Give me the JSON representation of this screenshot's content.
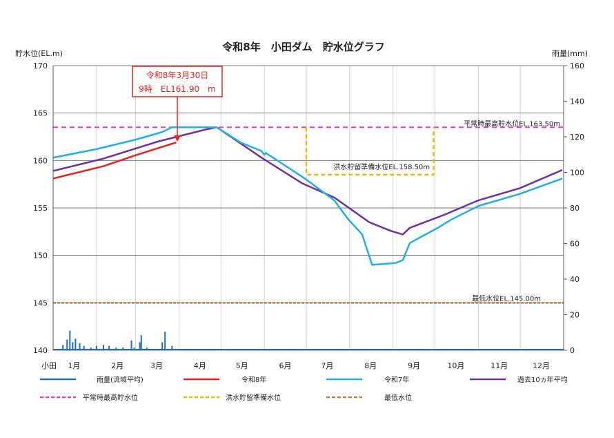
{
  "chart_data": {
    "type": "line",
    "title": "令和8年　小田ダム　貯水位グラフ",
    "ylabel_left": "貯水位(EL.m)",
    "ylabel_right": "雨量(mm)",
    "station_label": "小田",
    "ylim_left": [
      140,
      170
    ],
    "yticks_left": [
      "140",
      "145",
      "150",
      "155",
      "160",
      "165",
      "170"
    ],
    "ylim_right": [
      0,
      160
    ],
    "yticks_right": [
      "0",
      "20",
      "40",
      "60",
      "80",
      "100",
      "120",
      "140",
      "160"
    ],
    "x_categories": [
      "1月",
      "2月",
      "3月",
      "4月",
      "5月",
      "6月",
      "7月",
      "8月",
      "9月",
      "10月",
      "11月",
      "12月"
    ],
    "grid": true,
    "legend_position": "bottom",
    "annotation": {
      "line1": "令和8年3月30日",
      "line2": "9時　EL161.90　m",
      "date": "03-30",
      "value": 161.9
    },
    "reference_lines": [
      {
        "name": "平常時最高貯水位",
        "label": "平常時最高貯水位EL.163.50m",
        "value": 163.5,
        "color": "#e83fd0"
      },
      {
        "name": "洪水貯留準備水位",
        "label": "洪水貯留準備水位EL.158.50m",
        "value": 158.5,
        "upper": 163.5,
        "from": "07-01",
        "to": "09-30",
        "color": "#f5b800"
      },
      {
        "name": "最低水位",
        "label": "最低水位EL.145.00m",
        "value": 145.0,
        "color": "#c0804a"
      }
    ],
    "rainfall": {
      "name": "雨量(流域平均)",
      "color": "#1f6fb5",
      "points": [
        [
          "01-08",
          3
        ],
        [
          "01-11",
          6
        ],
        [
          "01-13",
          11
        ],
        [
          "01-15",
          4.5
        ],
        [
          "01-17",
          6.5
        ],
        [
          "01-20",
          4
        ],
        [
          "01-23",
          2.5
        ],
        [
          "01-28",
          1.5
        ],
        [
          "02-01",
          2.5
        ],
        [
          "02-06",
          3
        ],
        [
          "02-10",
          2.5
        ],
        [
          "02-15",
          1.5
        ],
        [
          "02-20",
          1.5
        ],
        [
          "02-26",
          5.5
        ],
        [
          "02-28",
          1.5
        ],
        [
          "03-04",
          4.5
        ],
        [
          "03-05",
          8.5
        ],
        [
          "03-09",
          1.5
        ],
        [
          "03-20",
          4.5
        ],
        [
          "03-22",
          10.5
        ],
        [
          "03-27",
          2.5
        ]
      ]
    },
    "series": [
      {
        "name": "令和8年",
        "color": "#e8231f",
        "points": [
          [
            "01-01",
            158.1
          ],
          [
            "02-06",
            159.4
          ],
          [
            "03-02",
            160.6
          ],
          [
            "03-30",
            161.9
          ]
        ]
      },
      {
        "name": "令和7年",
        "color": "#1fb0e6",
        "points": [
          [
            "01-01",
            160.3
          ],
          [
            "02-01",
            161.2
          ],
          [
            "03-01",
            162.2
          ],
          [
            "03-20",
            163.0
          ],
          [
            "03-27",
            163.5
          ],
          [
            "04-28",
            163.5
          ],
          [
            "05-15",
            161.9
          ],
          [
            "05-30",
            161.0
          ],
          [
            "06-01",
            160.6
          ],
          [
            "06-02",
            160.8
          ],
          [
            "06-30",
            158.1
          ],
          [
            "07-21",
            155.8
          ],
          [
            "07-31",
            153.8
          ],
          [
            "08-10",
            152.2
          ],
          [
            "08-17",
            149.0
          ],
          [
            "09-03",
            149.2
          ],
          [
            "09-08",
            149.5
          ],
          [
            "09-13",
            151.3
          ],
          [
            "10-03",
            152.9
          ],
          [
            "10-13",
            153.8
          ],
          [
            "11-01",
            155.2
          ],
          [
            "12-01",
            156.5
          ],
          [
            "12-31",
            158.1
          ]
        ]
      },
      {
        "name": "過去10ヵ年平均",
        "color": "#7030a0",
        "points": [
          [
            "01-01",
            158.9
          ],
          [
            "02-06",
            160.2
          ],
          [
            "03-17",
            162.0
          ],
          [
            "04-21",
            163.3
          ],
          [
            "04-28",
            163.5
          ],
          [
            "05-30",
            160.3
          ],
          [
            "06-28",
            157.6
          ],
          [
            "07-21",
            156.1
          ],
          [
            "08-15",
            153.5
          ],
          [
            "08-30",
            152.6
          ],
          [
            "09-08",
            152.2
          ],
          [
            "09-13",
            152.9
          ],
          [
            "10-08",
            154.3
          ],
          [
            "11-01",
            155.8
          ],
          [
            "12-01",
            157.1
          ],
          [
            "12-31",
            159.0
          ]
        ]
      }
    ]
  }
}
